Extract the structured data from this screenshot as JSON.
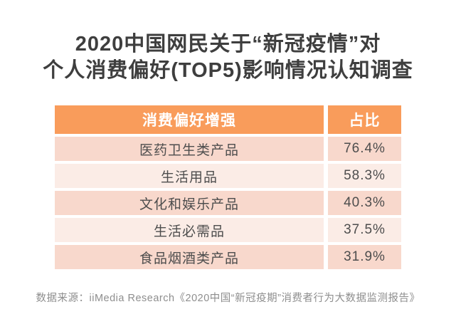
{
  "title": {
    "line1": "2020中国网民关于“新冠疫情”对",
    "line2": "个人消费偏好(TOP5)影响情况认知调查"
  },
  "table": {
    "headers": [
      "消费偏好增强",
      "占比"
    ],
    "rows": [
      {
        "category": "医药卫生类产品",
        "share": "76.4%"
      },
      {
        "category": "生活用品",
        "share": "58.3%"
      },
      {
        "category": "文化和娱乐产品",
        "share": "40.3%"
      },
      {
        "category": "生活必需品",
        "share": "37.5%"
      },
      {
        "category": "食品烟酒类产品",
        "share": "31.9%"
      }
    ]
  },
  "source": "数据来源：iiMedia Research《2020中国“新冠疫期”消费者行为大数据监测报告》",
  "colors": {
    "header_bg": "#f99c5b",
    "header_text": "#ffffff",
    "row_odd_bg": "#f8d8cc",
    "row_even_bg": "#fbece6",
    "row_text": "#4d4d4d",
    "title_text": "#3e3e3e",
    "source_text": "#8e8e8e",
    "background": "#ffffff"
  },
  "chart_data": {
    "type": "table",
    "title": "2020中国网民关于“新冠疫情”对个人消费偏好(TOP5)影响情况认知调查",
    "columns": [
      "消费偏好增强",
      "占比"
    ],
    "categories": [
      "医药卫生类产品",
      "生活用品",
      "文化和娱乐产品",
      "生活必需品",
      "食品烟酒类产品"
    ],
    "values": [
      76.4,
      58.3,
      40.3,
      37.5,
      31.9
    ],
    "unit": "%",
    "legend_position": "none",
    "source": "数据来源：iiMedia Research《2020中国“新冠疫期”消费者行为大数据监测报告》"
  }
}
